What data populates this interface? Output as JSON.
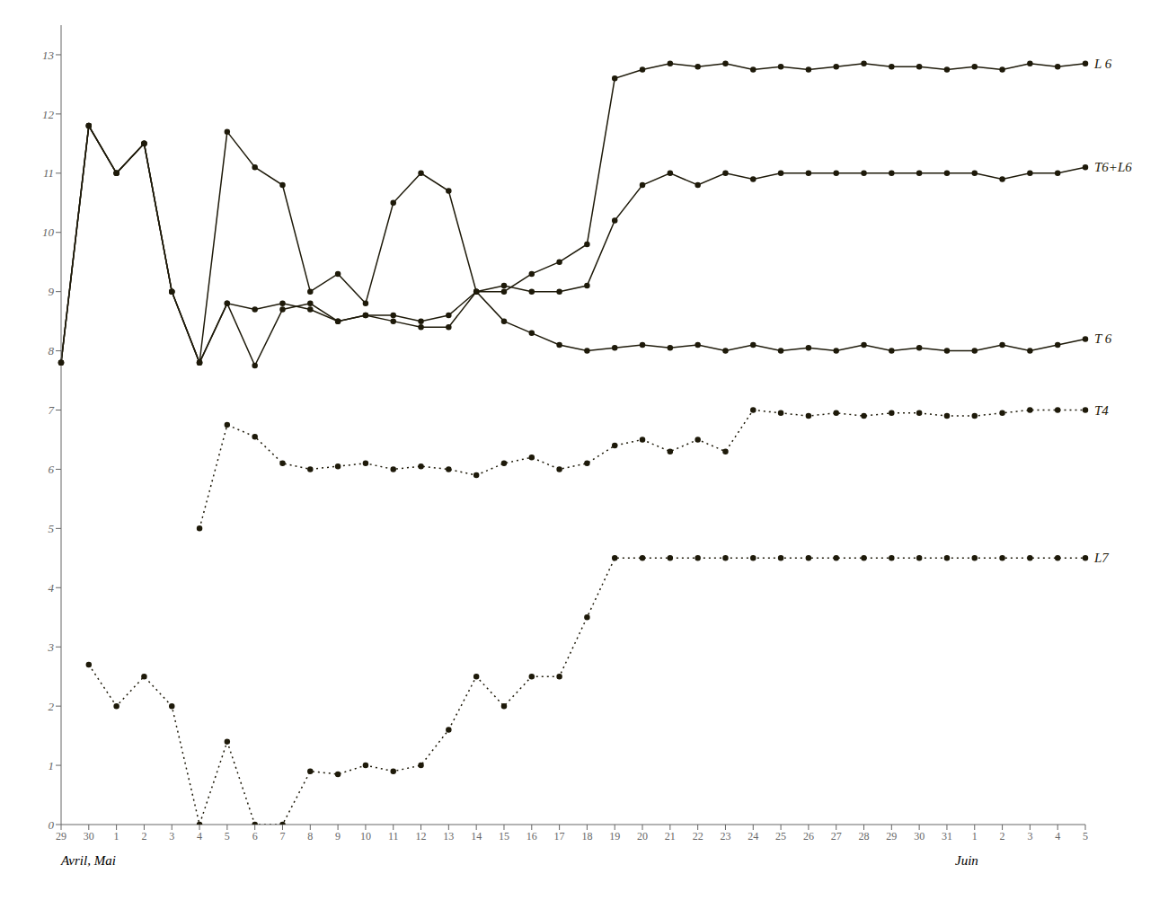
{
  "chart_data": {
    "type": "line",
    "categories": [
      "29",
      "30",
      "1",
      "2",
      "3",
      "4",
      "5",
      "6",
      "7",
      "8",
      "9",
      "10",
      "11",
      "12",
      "13",
      "14",
      "15",
      "16",
      "17",
      "18",
      "19",
      "20",
      "21",
      "22",
      "23",
      "24",
      "25",
      "26",
      "27",
      "28",
      "29",
      "30",
      "31",
      "1",
      "2",
      "3",
      "4",
      "5"
    ],
    "ylim": [
      0,
      13.5
    ],
    "yticks": [
      0,
      1,
      2,
      3,
      4,
      5,
      6,
      7,
      8,
      9,
      10,
      11,
      12,
      13
    ],
    "grid": false,
    "marker": "circle",
    "annotations": [
      "Avril, Mai",
      "Juin"
    ],
    "series": [
      {
        "name": "L 6",
        "color": "#1e1a0a",
        "line_style": "solid",
        "values": [
          7.8,
          11.8,
          11.0,
          11.5,
          9.0,
          7.8,
          11.7,
          11.1,
          10.8,
          9.0,
          9.3,
          8.8,
          10.5,
          11.0,
          10.7,
          9.0,
          9.0,
          9.3,
          9.5,
          9.8,
          12.6,
          12.75,
          12.85,
          12.8,
          12.85,
          12.75,
          12.8,
          12.75,
          12.8,
          12.85,
          12.8,
          12.8,
          12.75,
          12.8,
          12.75,
          12.85,
          12.8,
          12.85
        ]
      },
      {
        "name": "T6+L6",
        "color": "#1e1a0a",
        "line_style": "solid",
        "values": [
          7.8,
          11.8,
          11.0,
          11.5,
          9.0,
          7.8,
          8.8,
          8.7,
          8.8,
          8.7,
          8.5,
          8.6,
          8.6,
          8.5,
          8.6,
          9.0,
          9.1,
          9.0,
          9.0,
          9.1,
          10.2,
          10.8,
          11.0,
          10.8,
          11.0,
          10.9,
          11.0,
          11.0,
          11.0,
          11.0,
          11.0,
          11.0,
          11.0,
          11.0,
          10.9,
          11.0,
          11.0,
          11.1
        ]
      },
      {
        "name": "T 6",
        "color": "#1e1a0a",
        "line_style": "solid",
        "values": [
          7.8,
          11.8,
          11.0,
          11.5,
          9.0,
          7.8,
          8.8,
          7.75,
          8.7,
          8.8,
          8.5,
          8.6,
          8.5,
          8.4,
          8.4,
          9.0,
          8.5,
          8.3,
          8.1,
          8.0,
          8.05,
          8.1,
          8.05,
          8.1,
          8.0,
          8.1,
          8.0,
          8.05,
          8.0,
          8.1,
          8.0,
          8.05,
          8.0,
          8.0,
          8.1,
          8.0,
          8.1,
          8.2
        ]
      },
      {
        "name": "T4",
        "color": "#1e1a0a",
        "line_style": "dotted",
        "values": [
          null,
          null,
          null,
          null,
          null,
          5.0,
          6.75,
          6.55,
          6.1,
          6.0,
          6.05,
          6.1,
          6.0,
          6.05,
          6.0,
          5.9,
          6.1,
          6.2,
          6.0,
          6.1,
          6.4,
          6.5,
          6.3,
          6.5,
          6.3,
          7.0,
          6.95,
          6.9,
          6.95,
          6.9,
          6.95,
          6.95,
          6.9,
          6.9,
          6.95,
          7.0,
          7.0,
          7.0
        ]
      },
      {
        "name": "L7",
        "color": "#1e1a0a",
        "line_style": "dotted",
        "values": [
          null,
          2.7,
          2.0,
          2.5,
          2.0,
          0.0,
          1.4,
          0.0,
          0.0,
          0.9,
          0.85,
          1.0,
          0.9,
          1.0,
          1.6,
          2.5,
          2.0,
          2.5,
          2.5,
          3.5,
          4.5,
          4.5,
          4.5,
          4.5,
          4.5,
          4.5,
          4.5,
          4.5,
          4.5,
          4.5,
          4.5,
          4.5,
          4.5,
          4.5,
          4.5,
          4.5,
          4.5,
          4.5
        ]
      }
    ]
  }
}
